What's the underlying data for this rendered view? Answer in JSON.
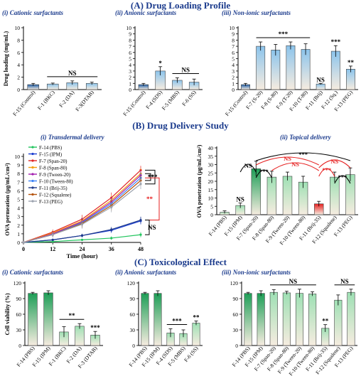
{
  "sections": {
    "a": "(A) Drug Loading Profile",
    "b": "(B) Drug Delivery Study",
    "c": "(C) Toxicological Effect"
  },
  "colors": {
    "title": "#1a3a8c",
    "blue_top": "#1f5fa8",
    "green_top": "#1e9e57",
    "red_top": "#e62020",
    "bar_bottom": "#f6ece0",
    "sig_arrows": "#e62020"
  },
  "chart_data": [
    {
      "id": "a1",
      "type": "bar",
      "subtitle": "(i) Cationic surfactants",
      "ylabel": "Drug loading (mg/mL)",
      "ylim": [
        0,
        10
      ],
      "yticks": [
        0,
        2,
        4,
        6,
        8,
        10
      ],
      "categories": [
        "F-15 (Control)",
        "F-1 (BKC)",
        "F-2 (DA)",
        "F-3(DTAB)"
      ],
      "values": [
        0.8,
        0.9,
        1.1,
        1.0
      ],
      "errors": [
        0.2,
        0.15,
        0.3,
        0.2
      ],
      "bar_colors": [
        "blue",
        "light",
        "light",
        "light"
      ],
      "stars": [
        "",
        "",
        "",
        ""
      ],
      "brackets": [
        {
          "from": 1,
          "to": 3,
          "label": "NS"
        }
      ]
    },
    {
      "id": "a2",
      "type": "bar",
      "subtitle": "(ii) Anionic surfactants",
      "ylabel": "",
      "ylim": [
        0,
        10
      ],
      "yticks": [
        0,
        1,
        2,
        3,
        4,
        5,
        6,
        7,
        8,
        9,
        10
      ],
      "categories": [
        "F-15 (Control)",
        "F-4 (SDS)",
        "F-5 (MBS)",
        "F-6 (SS)"
      ],
      "values": [
        0.8,
        3.0,
        1.5,
        1.2
      ],
      "errors": [
        0.2,
        0.7,
        0.4,
        0.5
      ],
      "bar_colors": [
        "blue",
        "light",
        "light",
        "light"
      ],
      "stars": [
        "",
        "*",
        "",
        ""
      ],
      "brackets": [
        {
          "from": 2,
          "to": 3,
          "label": "NS"
        }
      ]
    },
    {
      "id": "a3",
      "type": "bar",
      "subtitle": "(iii) Non-ionic surfactants",
      "ylabel": "",
      "ylim": [
        0,
        10
      ],
      "yticks": [
        0,
        1,
        2,
        3,
        4,
        5,
        6,
        7,
        8,
        9,
        10
      ],
      "categories": [
        "F-15 (Control)",
        "F-7 (S-20)",
        "F-8 (S-80)",
        "F-9 (T-20)",
        "F-10 (T-80)",
        "F-11 (Brij)",
        "F-12 (Sq.)",
        "F-13 (PEG)"
      ],
      "values": [
        0.8,
        7.0,
        6.4,
        7.1,
        6.5,
        0.9,
        6.2,
        3.3
      ],
      "errors": [
        0.2,
        0.7,
        0.9,
        0.6,
        0.9,
        0.1,
        0.9,
        0.5
      ],
      "bar_colors": [
        "blue",
        "light",
        "light",
        "light",
        "light",
        "light",
        "light",
        "light"
      ],
      "stars": [
        "",
        "",
        "",
        "",
        "",
        "NS",
        "***",
        "**"
      ],
      "brackets": [
        {
          "from": 1,
          "to": 4,
          "label": "***"
        }
      ]
    },
    {
      "id": "b1",
      "type": "line",
      "subtitle": "(i) Transdermal delivery",
      "xlabel": "Time (hour)",
      "ylabel": "OVA permeation (μg/mL/cm²)",
      "x": [
        0,
        12,
        24,
        36,
        48
      ],
      "xlim": [
        0,
        48
      ],
      "ylim": [
        0,
        10
      ],
      "yticks": [
        0,
        1,
        2,
        3,
        4,
        5,
        6,
        7,
        8,
        9,
        10
      ],
      "series": [
        {
          "name": "F-14 (PBS)",
          "color": "#22c55e",
          "values": [
            0,
            0.1,
            0.3,
            0.5,
            0.9
          ],
          "err": [
            0,
            0.1,
            0.1,
            0.2,
            0.3
          ]
        },
        {
          "name": "F-15 (IPM)",
          "color": "#1d3fd1",
          "values": [
            0,
            0.3,
            0.8,
            1.4,
            2.5
          ],
          "err": [
            0,
            0.1,
            0.2,
            0.3,
            0.4
          ]
        },
        {
          "name": "F-7 (Span-20)",
          "color": "#e02424",
          "values": [
            0,
            1.2,
            2.7,
            5.2,
            8.4
          ],
          "err": [
            0,
            0.3,
            0.5,
            0.6,
            0.5
          ]
        },
        {
          "name": "F-8 (Span-80)",
          "color": "#f59e0b",
          "values": [
            0,
            1.1,
            2.5,
            4.9,
            8.0
          ],
          "err": [
            0,
            0.3,
            0.5,
            0.6,
            0.6
          ]
        },
        {
          "name": "F-9 (Tween-20)",
          "color": "#a21caf",
          "values": [
            0,
            1.0,
            2.4,
            4.7,
            7.8
          ],
          "err": [
            0,
            0.3,
            0.5,
            0.6,
            0.6
          ]
        },
        {
          "name": "F-10 (Tween-80)",
          "color": "#3b82f6",
          "values": [
            0,
            0.9,
            2.3,
            4.5,
            7.5
          ],
          "err": [
            0,
            0.3,
            0.5,
            0.6,
            0.6
          ]
        },
        {
          "name": "F-11 (Brij-35)",
          "color": "#1e3a8a",
          "values": [
            0,
            0.3,
            0.8,
            1.5,
            2.6
          ],
          "err": [
            0,
            0.1,
            0.2,
            0.3,
            0.4
          ]
        },
        {
          "name": "F-12 (Squalene)",
          "color": "#b45309",
          "values": [
            0,
            0.9,
            2.2,
            4.3,
            7.2
          ],
          "err": [
            0,
            0.3,
            0.5,
            0.6,
            0.6
          ]
        },
        {
          "name": "F-13 (PEG)",
          "color": "#9ca3af",
          "values": [
            0,
            0.9,
            2.1,
            4.1,
            6.8
          ],
          "err": [
            0,
            0.3,
            0.5,
            0.6,
            0.6
          ]
        }
      ],
      "annotations": [
        "***",
        "**",
        "**",
        "NS"
      ]
    },
    {
      "id": "b2",
      "type": "bar",
      "subtitle": "(ii) Topical delivery",
      "ylabel": "OVA penetration (μg/mL/cm²)",
      "ylim": [
        0,
        40
      ],
      "yticks": [
        0,
        5,
        10,
        15,
        20,
        25,
        30,
        35,
        40
      ],
      "categories": [
        "F-14 (PBS)",
        "F-15 (IPM)",
        "F-7 (Span-20)",
        "F-8 (Span-80)",
        "F-9 (Tween-20)",
        "F-10 (Tween-80)",
        "F-11 (Brij-35)",
        "F-12 (Squalene)",
        "F-13 (PEG)"
      ],
      "values": [
        1.5,
        5.5,
        27.5,
        22.5,
        23.0,
        19.5,
        6.5,
        22.5,
        24.0
      ],
      "errors": [
        0.8,
        1.5,
        4.5,
        3.5,
        2.5,
        3.5,
        1.5,
        3.0,
        4.0
      ],
      "bar_colors": [
        "light",
        "light",
        "green",
        "light",
        "light",
        "light",
        "red",
        "light",
        "light"
      ],
      "stars": [
        "",
        "NS",
        "",
        "",
        "",
        "",
        "",
        "",
        ""
      ],
      "annotations": [
        "***",
        "NS",
        "***",
        "NS",
        "NS",
        "***",
        "NS",
        "***"
      ]
    },
    {
      "id": "c1",
      "type": "bar",
      "subtitle": "(i) Cationic surfactants",
      "ylabel": "Cell viability (%)",
      "ylim": [
        0,
        120
      ],
      "yticks": [
        0,
        30,
        60,
        90,
        120
      ],
      "categories": [
        "F-14 (PBS)",
        "F-15 (IPM)",
        "F-1 (BKC)",
        "F-2 (DA)",
        "F-3 (DTAB)"
      ],
      "values": [
        100,
        101,
        26,
        37,
        20
      ],
      "errors": [
        2,
        4,
        10,
        5,
        7
      ],
      "bar_colors": [
        "green",
        "green",
        "light",
        "light",
        "light"
      ],
      "stars": [
        "",
        "",
        "",
        "",
        "***"
      ],
      "brackets": [
        {
          "from": 2,
          "to": 3,
          "label": "**"
        }
      ]
    },
    {
      "id": "c2",
      "type": "bar",
      "subtitle": "(ii) Anionic surfactants",
      "ylabel": "",
      "ylim": [
        0,
        120
      ],
      "yticks": [
        0,
        30,
        60,
        90,
        120
      ],
      "categories": [
        "F-14 (PBS)",
        "F-15 (IPM)",
        "F-4 (SDS)",
        "F-5 (MBS)",
        "F-6 (SS)"
      ],
      "values": [
        100,
        100,
        24,
        23,
        43
      ],
      "errors": [
        2,
        5,
        8,
        7,
        4
      ],
      "bar_colors": [
        "green",
        "green",
        "light",
        "light",
        "light"
      ],
      "stars": [
        "",
        "",
        "",
        "",
        "**"
      ],
      "brackets": [
        {
          "from": 2,
          "to": 3,
          "label": "***"
        }
      ]
    },
    {
      "id": "c3",
      "type": "bar",
      "subtitle": "(iii) Non-ionic surfactants",
      "ylabel": "",
      "ylim": [
        0,
        120
      ],
      "yticks": [
        0,
        30,
        60,
        90,
        120
      ],
      "categories": [
        "F-14 (PBS)",
        "F-15 (IPM)",
        "F-7 (Span-20)",
        "F-8 (Span-80)",
        "F-9 (Tween-20)",
        "F-10 (Tween-80)",
        "F-11 (Brij-35)",
        "F-12 (Squalene)",
        "F-13 (PEG)"
      ],
      "values": [
        100,
        100,
        102,
        101,
        100,
        99,
        33,
        87,
        102
      ],
      "errors": [
        2,
        5,
        5,
        3,
        8,
        4,
        7,
        10,
        6
      ],
      "bar_colors": [
        "green",
        "green",
        "light",
        "light",
        "light",
        "light",
        "light",
        "light",
        "light"
      ],
      "stars": [
        "",
        "",
        "",
        "",
        "",
        "",
        "**",
        "",
        ""
      ],
      "brackets": [
        {
          "from": 2,
          "to": 5,
          "label": "NS"
        },
        {
          "from": 7,
          "to": 8,
          "label": "NS"
        }
      ]
    }
  ]
}
